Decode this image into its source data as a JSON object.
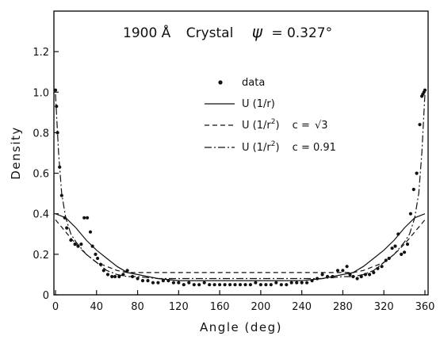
{
  "chart_data": {
    "type": "line",
    "title": {
      "energy": "1900 Å",
      "material": "Crystal",
      "psi_symbol": "ψ",
      "psi_value": "= 0.327°"
    },
    "xlabel": "Angle (deg)",
    "ylabel": "Density",
    "xlim": [
      0,
      360
    ],
    "ylim": [
      0,
      1.4
    ],
    "x_ticks": [
      0,
      40,
      80,
      120,
      160,
      200,
      240,
      280,
      320,
      360
    ],
    "x_tick_labels": [
      "0",
      "40",
      "80",
      "120",
      "160",
      "200",
      "240",
      "280",
      "320",
      "360"
    ],
    "y_ticks": [
      0,
      0.2,
      0.4,
      0.6,
      0.8,
      1.0,
      1.2
    ],
    "y_tick_labels": [
      "0",
      "0.2",
      "0.4",
      "0.6",
      "0.8",
      "1.0",
      "1.2"
    ],
    "grid": false,
    "legend_position": "center",
    "series": [
      {
        "name": "data",
        "style": "points",
        "x": [
          0,
          1,
          2,
          4,
          6,
          9,
          11,
          15,
          19,
          22,
          25,
          28,
          31,
          34,
          36,
          39,
          41,
          44,
          47,
          51,
          55,
          58,
          62,
          66,
          70,
          75,
          80,
          85,
          90,
          95,
          100,
          105,
          110,
          115,
          120,
          125,
          130,
          135,
          140,
          145,
          150,
          155,
          160,
          165,
          170,
          175,
          180,
          185,
          190,
          195,
          200,
          205,
          210,
          215,
          220,
          225,
          230,
          235,
          240,
          245,
          250,
          255,
          260,
          265,
          270,
          275,
          280,
          284,
          287,
          290,
          294,
          298,
          302,
          306,
          310,
          314,
          318,
          322,
          325,
          328,
          331,
          334,
          337,
          340,
          343,
          346,
          349,
          352,
          355,
          357,
          358,
          359,
          360
        ],
        "y": [
          1.01,
          0.93,
          0.8,
          0.63,
          0.49,
          0.38,
          0.33,
          0.27,
          0.25,
          0.24,
          0.25,
          0.38,
          0.38,
          0.31,
          0.24,
          0.2,
          0.18,
          0.15,
          0.12,
          0.1,
          0.09,
          0.09,
          0.09,
          0.1,
          0.12,
          0.09,
          0.08,
          0.07,
          0.07,
          0.06,
          0.06,
          0.07,
          0.07,
          0.06,
          0.06,
          0.05,
          0.06,
          0.05,
          0.05,
          0.06,
          0.05,
          0.05,
          0.05,
          0.05,
          0.05,
          0.05,
          0.05,
          0.05,
          0.05,
          0.06,
          0.05,
          0.05,
          0.05,
          0.06,
          0.05,
          0.05,
          0.06,
          0.06,
          0.06,
          0.06,
          0.07,
          0.08,
          0.1,
          0.09,
          0.09,
          0.12,
          0.12,
          0.14,
          0.1,
          0.09,
          0.08,
          0.09,
          0.1,
          0.1,
          0.11,
          0.13,
          0.14,
          0.17,
          0.18,
          0.23,
          0.24,
          0.3,
          0.2,
          0.21,
          0.25,
          0.4,
          0.52,
          0.6,
          0.84,
          0.98,
          0.99,
          1.0,
          1.01
        ]
      },
      {
        "name": "U (1/r)",
        "style": "solid",
        "x": [
          0,
          10,
          20,
          30,
          40,
          50,
          60,
          70,
          80,
          100,
          120,
          140,
          160,
          180,
          200,
          220,
          240,
          260,
          280,
          290,
          300,
          310,
          320,
          330,
          340,
          350,
          360
        ],
        "y": [
          0.4,
          0.38,
          0.33,
          0.27,
          0.22,
          0.18,
          0.14,
          0.11,
          0.1,
          0.08,
          0.07,
          0.07,
          0.07,
          0.07,
          0.07,
          0.07,
          0.07,
          0.08,
          0.1,
          0.11,
          0.14,
          0.18,
          0.22,
          0.27,
          0.33,
          0.38,
          0.4
        ]
      },
      {
        "name": "U (1/r²) c = √3",
        "label_text": "U (1/r",
        "label_sup": "2",
        "label_close": ")",
        "label_c": "c =",
        "label_c_value": "3",
        "style": "dashed",
        "x": [
          0,
          10,
          20,
          30,
          40,
          50,
          60,
          70,
          80,
          100,
          120,
          140,
          160,
          180,
          200,
          220,
          240,
          260,
          280,
          290,
          300,
          310,
          320,
          330,
          340,
          350,
          360
        ],
        "y": [
          0.37,
          0.31,
          0.25,
          0.2,
          0.16,
          0.14,
          0.12,
          0.11,
          0.11,
          0.11,
          0.11,
          0.11,
          0.11,
          0.11,
          0.11,
          0.11,
          0.11,
          0.11,
          0.11,
          0.11,
          0.12,
          0.14,
          0.16,
          0.2,
          0.25,
          0.31,
          0.37
        ]
      },
      {
        "name": "U (1/r²) c = 0.91",
        "label_text": "U (1/r",
        "label_sup": "2",
        "label_close": ")",
        "label_c": "c = 0.91",
        "style": "dashdot",
        "x": [
          0,
          3,
          6,
          10,
          15,
          20,
          30,
          40,
          50,
          60,
          70,
          80,
          100,
          120,
          140,
          160,
          180,
          200,
          220,
          240,
          260,
          280,
          290,
          300,
          310,
          320,
          330,
          340,
          345,
          350,
          354,
          357,
          360
        ],
        "y": [
          0.99,
          0.7,
          0.5,
          0.38,
          0.3,
          0.26,
          0.2,
          0.16,
          0.12,
          0.1,
          0.09,
          0.09,
          0.08,
          0.08,
          0.08,
          0.08,
          0.08,
          0.08,
          0.08,
          0.08,
          0.08,
          0.09,
          0.09,
          0.1,
          0.12,
          0.16,
          0.2,
          0.26,
          0.3,
          0.38,
          0.5,
          0.7,
          0.99
        ]
      }
    ]
  }
}
